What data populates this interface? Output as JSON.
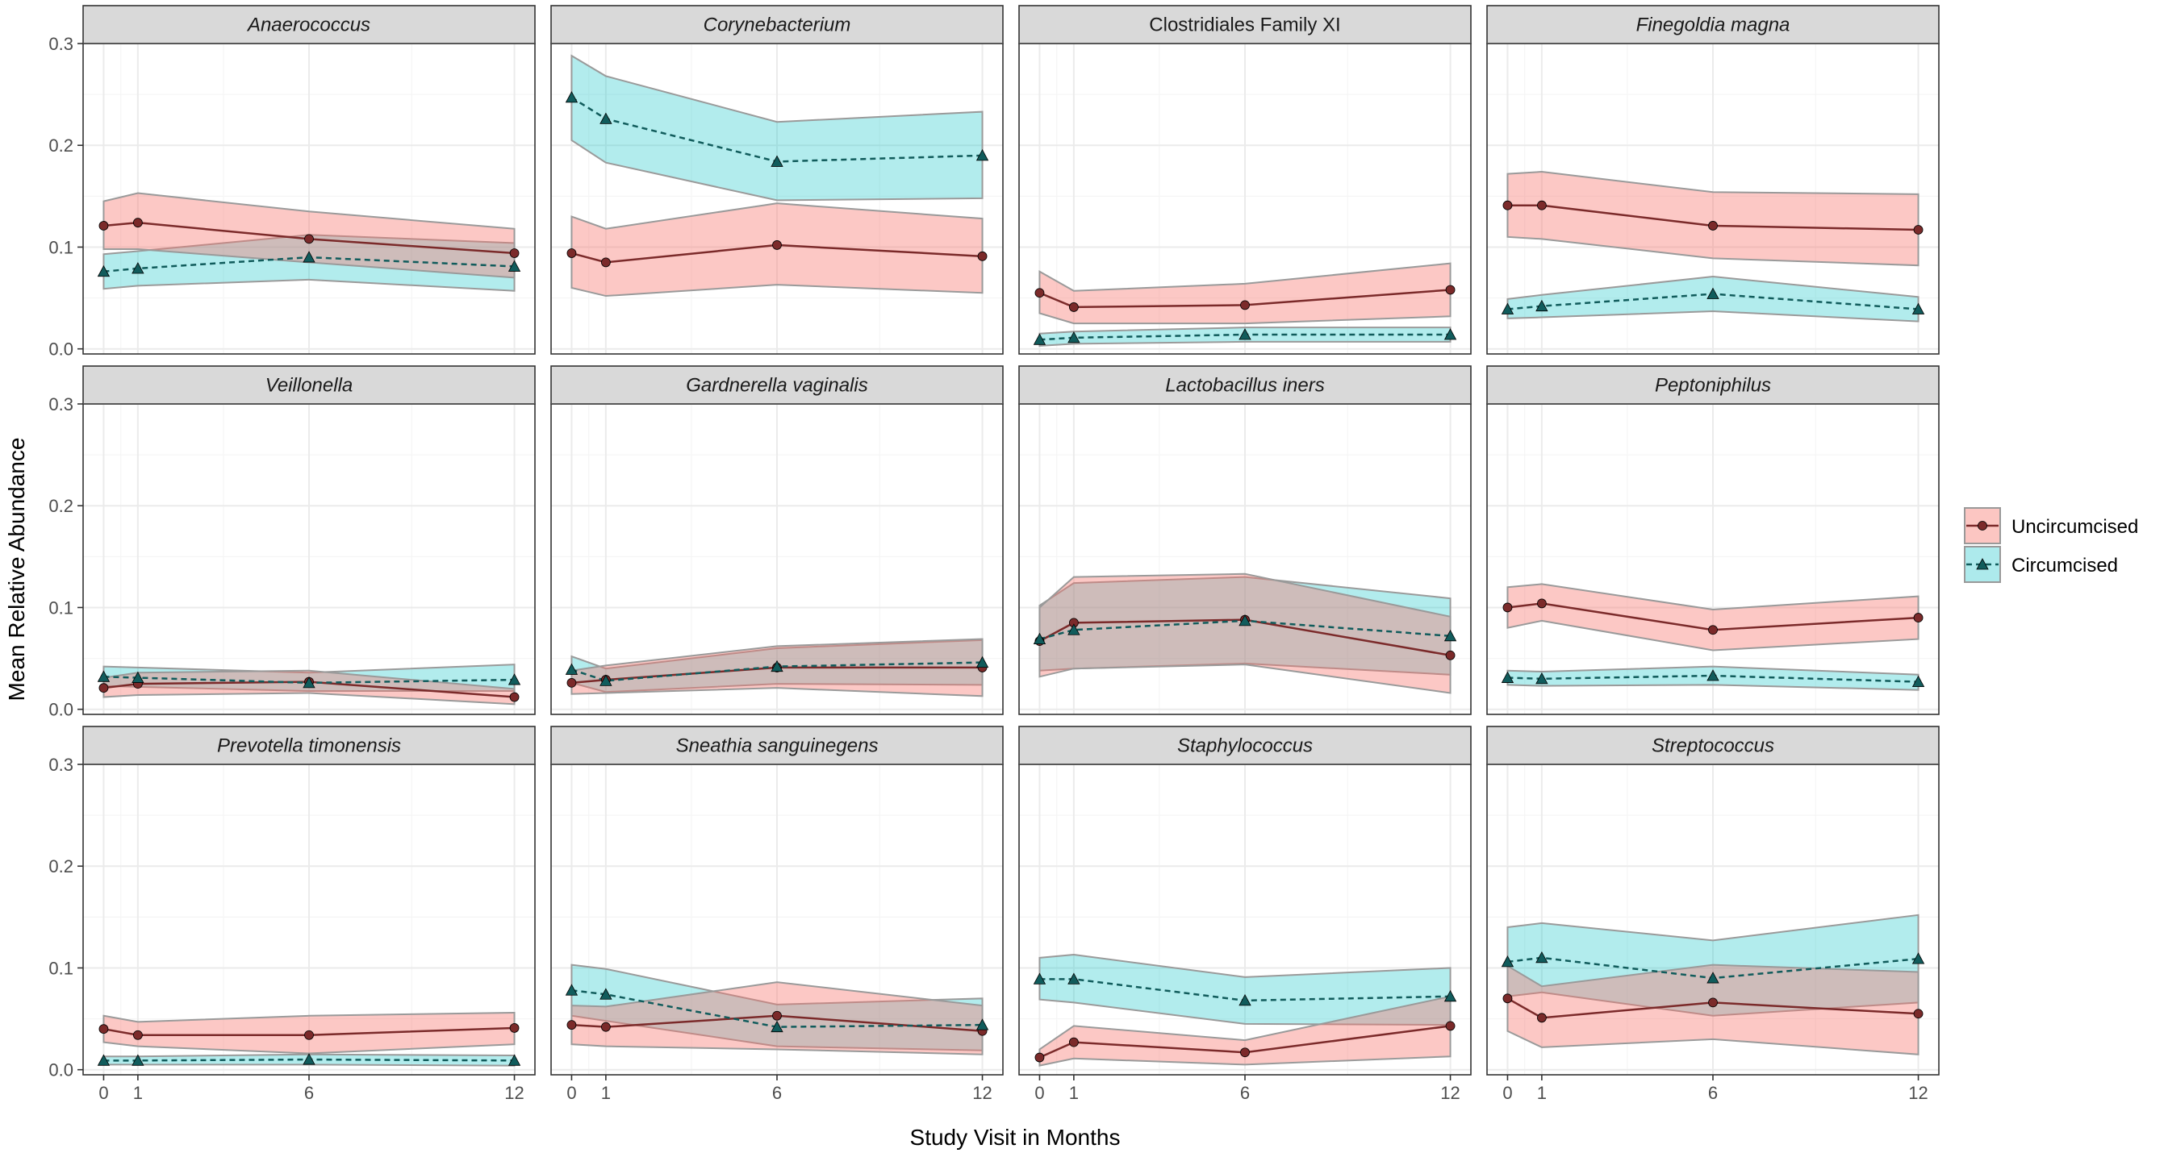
{
  "chart_data": {
    "type": "line",
    "facet_layout": "3 rows x 4 columns",
    "xlabel": "Study Visit in Months",
    "ylabel": "Mean Relative Abundance",
    "x": [
      0,
      1,
      6,
      12
    ],
    "x_tick_labels": [
      "0",
      "1",
      "6",
      "12"
    ],
    "xlim": [
      -0.6,
      12.6
    ],
    "ylim": [
      -0.005,
      0.3
    ],
    "y_ticks": [
      0.0,
      0.1,
      0.2,
      0.3
    ],
    "y_tick_labels": [
      "0.0",
      "0.1",
      "0.2",
      "0.3"
    ],
    "grid": true,
    "legend_position": "right",
    "colors": {
      "uncircumcised_fill": "#f8766d",
      "circumcised_fill": "#00bfc4",
      "uncircumcised_line": "#7b2a2a",
      "circumcised_line": "#115c5c",
      "strip_bg": "#d9d9d9",
      "panel_border": "#333333",
      "grid_major": "#ebebeb",
      "grid_minor": "#f5f5f5"
    },
    "series": [
      {
        "name": "Uncircumcised",
        "key": "unc",
        "marker": "circle",
        "linestyle": "solid"
      },
      {
        "name": "Circumcised",
        "key": "circ",
        "marker": "triangle",
        "linestyle": "dashed"
      }
    ],
    "panels": [
      {
        "title": "Anaerococcus",
        "italic": true,
        "unc": {
          "values": [
            0.121,
            0.124,
            0.108,
            0.094
          ],
          "lower": [
            0.098,
            0.098,
            0.085,
            0.07
          ],
          "upper": [
            0.145,
            0.153,
            0.135,
            0.118
          ]
        },
        "circ": {
          "values": [
            0.076,
            0.079,
            0.09,
            0.081
          ],
          "lower": [
            0.059,
            0.062,
            0.068,
            0.057
          ],
          "upper": [
            0.093,
            0.096,
            0.112,
            0.104
          ]
        }
      },
      {
        "title": "Corynebacterium",
        "italic": true,
        "unc": {
          "values": [
            0.094,
            0.085,
            0.102,
            0.091
          ],
          "lower": [
            0.06,
            0.052,
            0.063,
            0.055
          ],
          "upper": [
            0.13,
            0.118,
            0.143,
            0.128
          ]
        },
        "circ": {
          "values": [
            0.247,
            0.226,
            0.184,
            0.19
          ],
          "lower": [
            0.205,
            0.183,
            0.146,
            0.148
          ],
          "upper": [
            0.288,
            0.268,
            0.223,
            0.233
          ]
        }
      },
      {
        "title": "Clostridiales Family XI",
        "italic": false,
        "unc": {
          "values": [
            0.055,
            0.041,
            0.043,
            0.058
          ],
          "lower": [
            0.035,
            0.025,
            0.025,
            0.032
          ],
          "upper": [
            0.076,
            0.057,
            0.064,
            0.084
          ]
        },
        "circ": {
          "values": [
            0.009,
            0.011,
            0.014,
            0.014
          ],
          "lower": [
            0.003,
            0.005,
            0.007,
            0.007
          ],
          "upper": [
            0.015,
            0.017,
            0.021,
            0.021
          ]
        }
      },
      {
        "title": "Finegoldia magna",
        "italic": true,
        "unc": {
          "values": [
            0.141,
            0.141,
            0.121,
            0.117
          ],
          "lower": [
            0.11,
            0.108,
            0.089,
            0.082
          ],
          "upper": [
            0.172,
            0.174,
            0.154,
            0.152
          ]
        },
        "circ": {
          "values": [
            0.039,
            0.042,
            0.054,
            0.039
          ],
          "lower": [
            0.03,
            0.031,
            0.037,
            0.027
          ],
          "upper": [
            0.049,
            0.053,
            0.071,
            0.051
          ]
        }
      },
      {
        "title": "Veillonella",
        "italic": true,
        "unc": {
          "values": [
            0.021,
            0.025,
            0.027,
            0.012
          ],
          "lower": [
            0.012,
            0.014,
            0.016,
            0.005
          ],
          "upper": [
            0.031,
            0.036,
            0.038,
            0.02
          ]
        },
        "circ": {
          "values": [
            0.032,
            0.031,
            0.026,
            0.029
          ],
          "lower": [
            0.023,
            0.022,
            0.018,
            0.018
          ],
          "upper": [
            0.042,
            0.041,
            0.036,
            0.044
          ]
        }
      },
      {
        "title": "Gardnerella vaginalis",
        "italic": true,
        "unc": {
          "values": [
            0.026,
            0.029,
            0.041,
            0.041
          ],
          "lower": [
            0.015,
            0.016,
            0.021,
            0.013
          ],
          "upper": [
            0.038,
            0.043,
            0.062,
            0.069
          ]
        },
        "circ": {
          "values": [
            0.039,
            0.028,
            0.042,
            0.046
          ],
          "lower": [
            0.026,
            0.017,
            0.025,
            0.024
          ],
          "upper": [
            0.052,
            0.04,
            0.06,
            0.068
          ]
        }
      },
      {
        "title": "Lactobacillus iners",
        "italic": true,
        "unc": {
          "values": [
            0.067,
            0.085,
            0.088,
            0.053
          ],
          "lower": [
            0.032,
            0.04,
            0.044,
            0.016
          ],
          "upper": [
            0.1,
            0.13,
            0.133,
            0.091
          ]
        },
        "circ": {
          "values": [
            0.069,
            0.078,
            0.087,
            0.072
          ],
          "lower": [
            0.038,
            0.04,
            0.045,
            0.034
          ],
          "upper": [
            0.102,
            0.124,
            0.13,
            0.109
          ]
        }
      },
      {
        "title": "Peptoniphilus",
        "italic": true,
        "unc": {
          "values": [
            0.1,
            0.104,
            0.078,
            0.09
          ],
          "lower": [
            0.08,
            0.087,
            0.058,
            0.069
          ],
          "upper": [
            0.12,
            0.123,
            0.098,
            0.111
          ]
        },
        "circ": {
          "values": [
            0.031,
            0.03,
            0.033,
            0.027
          ],
          "lower": [
            0.024,
            0.023,
            0.024,
            0.019
          ],
          "upper": [
            0.038,
            0.037,
            0.042,
            0.034
          ]
        }
      },
      {
        "title": "Prevotella timonensis",
        "italic": true,
        "unc": {
          "values": [
            0.04,
            0.034,
            0.034,
            0.041
          ],
          "lower": [
            0.027,
            0.023,
            0.016,
            0.025
          ],
          "upper": [
            0.053,
            0.047,
            0.053,
            0.056
          ]
        },
        "circ": {
          "values": [
            0.009,
            0.009,
            0.01,
            0.009
          ],
          "lower": [
            0.005,
            0.005,
            0.005,
            0.004
          ],
          "upper": [
            0.013,
            0.013,
            0.015,
            0.014
          ]
        }
      },
      {
        "title": "Sneathia sanguinegens",
        "italic": true,
        "unc": {
          "values": [
            0.044,
            0.042,
            0.053,
            0.038
          ],
          "lower": [
            0.025,
            0.023,
            0.02,
            0.015
          ],
          "upper": [
            0.063,
            0.062,
            0.086,
            0.063
          ]
        },
        "circ": {
          "values": [
            0.078,
            0.074,
            0.042,
            0.044
          ],
          "lower": [
            0.053,
            0.048,
            0.023,
            0.019
          ],
          "upper": [
            0.103,
            0.099,
            0.064,
            0.07
          ]
        }
      },
      {
        "title": "Staphylococcus",
        "italic": true,
        "unc": {
          "values": [
            0.012,
            0.027,
            0.017,
            0.043
          ],
          "lower": [
            0.004,
            0.011,
            0.005,
            0.013
          ],
          "upper": [
            0.02,
            0.043,
            0.029,
            0.072
          ]
        },
        "circ": {
          "values": [
            0.089,
            0.089,
            0.068,
            0.072
          ],
          "lower": [
            0.069,
            0.066,
            0.045,
            0.044
          ],
          "upper": [
            0.11,
            0.113,
            0.091,
            0.1
          ]
        }
      },
      {
        "title": "Streptococcus",
        "italic": true,
        "unc": {
          "values": [
            0.07,
            0.051,
            0.066,
            0.055
          ],
          "lower": [
            0.038,
            0.022,
            0.03,
            0.015
          ],
          "upper": [
            0.102,
            0.082,
            0.103,
            0.096
          ]
        },
        "circ": {
          "values": [
            0.106,
            0.11,
            0.09,
            0.109
          ],
          "lower": [
            0.072,
            0.076,
            0.053,
            0.066
          ],
          "upper": [
            0.14,
            0.144,
            0.127,
            0.152
          ]
        }
      }
    ]
  }
}
